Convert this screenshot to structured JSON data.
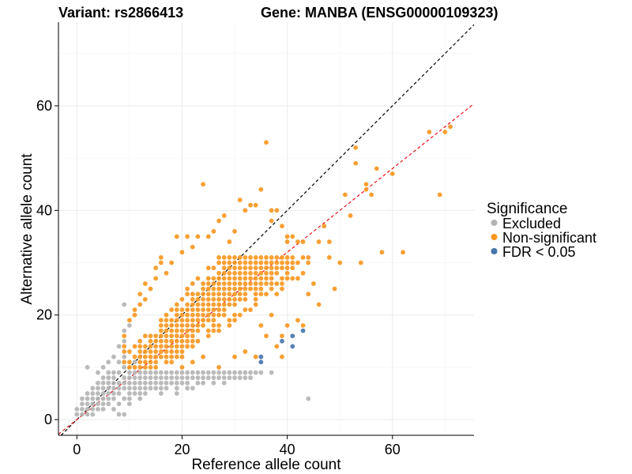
{
  "colors": {
    "excluded": "#b3b3b3",
    "non_significant": "#f7961d",
    "fdr": "#4574a8",
    "identity_line": "#000000",
    "fit_line": "#e8101a"
  },
  "chart_data": {
    "type": "scatter",
    "title_variant": "Variant: rs2866413",
    "title_gene": "Gene: MANBA (ENSG00000109323)",
    "xlabel": "Reference allele count",
    "ylabel": "Alternative allele count",
    "xlim": [
      -3.5,
      75.5
    ],
    "ylim": [
      -3,
      76
    ],
    "xticks": [
      0,
      20,
      40,
      60
    ],
    "yticks": [
      0,
      20,
      40,
      60
    ],
    "xtick_labels": [
      "0",
      "20",
      "40",
      "60"
    ],
    "ytick_labels": [
      "0",
      "20",
      "40",
      "60"
    ],
    "grid": true,
    "legend": {
      "title": "Significance",
      "position": "right",
      "entries": [
        {
          "key": "excluded",
          "label": "Excluded"
        },
        {
          "key": "non_significant",
          "label": "Non-significant"
        },
        {
          "key": "fdr",
          "label": "FDR < 0.05"
        }
      ]
    },
    "reference_lines": [
      {
        "name": "identity-line",
        "slope": 1,
        "intercept": 0,
        "style": "dashed",
        "color_key": "identity_line"
      },
      {
        "name": "fit-line",
        "slope": 0.8,
        "intercept": 0,
        "style": "dashed",
        "color_key": "fit_line"
      }
    ],
    "series": [
      {
        "name": "Excluded",
        "color_key": "excluded",
        "points": [
          [
            0,
            1
          ],
          [
            0,
            2
          ],
          [
            1,
            1
          ],
          [
            1,
            2
          ],
          [
            1,
            3
          ],
          [
            1,
            4
          ],
          [
            2,
            1
          ],
          [
            2,
            2
          ],
          [
            2,
            3
          ],
          [
            2,
            4
          ],
          [
            2,
            5
          ],
          [
            3,
            1
          ],
          [
            3,
            2
          ],
          [
            3,
            3
          ],
          [
            3,
            4
          ],
          [
            3,
            5
          ],
          [
            3,
            6
          ],
          [
            4,
            2
          ],
          [
            4,
            3
          ],
          [
            4,
            4
          ],
          [
            4,
            5
          ],
          [
            4,
            6
          ],
          [
            4,
            7
          ],
          [
            5,
            2
          ],
          [
            5,
            3
          ],
          [
            5,
            4
          ],
          [
            5,
            5
          ],
          [
            5,
            6
          ],
          [
            5,
            7
          ],
          [
            5,
            8
          ],
          [
            6,
            3
          ],
          [
            6,
            4
          ],
          [
            6,
            5
          ],
          [
            6,
            6
          ],
          [
            6,
            7
          ],
          [
            6,
            8
          ],
          [
            6,
            9
          ],
          [
            7,
            2
          ],
          [
            7,
            4
          ],
          [
            7,
            5
          ],
          [
            7,
            6
          ],
          [
            7,
            7
          ],
          [
            7,
            8
          ],
          [
            8,
            3
          ],
          [
            8,
            5
          ],
          [
            8,
            6
          ],
          [
            8,
            7
          ],
          [
            8,
            9
          ],
          [
            9,
            4
          ],
          [
            9,
            6
          ],
          [
            9,
            7
          ],
          [
            9,
            8
          ],
          [
            9,
            10
          ],
          [
            9,
            12
          ],
          [
            2,
            10
          ],
          [
            4,
            9
          ],
          [
            5,
            10
          ],
          [
            6,
            11
          ],
          [
            7,
            9
          ],
          [
            8,
            11
          ],
          [
            8,
            1
          ],
          [
            9,
            1
          ],
          [
            9,
            15
          ],
          [
            9,
            22
          ],
          [
            10,
            18
          ],
          [
            9,
            17
          ],
          [
            8,
            14
          ],
          [
            7,
            12
          ],
          [
            10,
            3
          ],
          [
            10,
            4
          ],
          [
            10,
            5
          ],
          [
            10,
            6
          ],
          [
            10,
            7
          ],
          [
            10,
            8
          ],
          [
            10,
            9
          ],
          [
            11,
            5
          ],
          [
            11,
            6
          ],
          [
            11,
            7
          ],
          [
            11,
            8
          ],
          [
            11,
            9
          ],
          [
            11,
            11
          ],
          [
            12,
            4
          ],
          [
            12,
            5
          ],
          [
            12,
            6
          ],
          [
            12,
            7
          ],
          [
            12,
            8
          ],
          [
            12,
            9
          ],
          [
            13,
            5
          ],
          [
            13,
            6
          ],
          [
            13,
            7
          ],
          [
            13,
            8
          ],
          [
            13,
            9
          ],
          [
            14,
            6
          ],
          [
            14,
            7
          ],
          [
            14,
            8
          ],
          [
            14,
            9
          ],
          [
            15,
            6
          ],
          [
            15,
            7
          ],
          [
            15,
            8
          ],
          [
            15,
            9
          ],
          [
            16,
            5
          ],
          [
            16,
            6
          ],
          [
            16,
            7
          ],
          [
            16,
            8
          ],
          [
            16,
            9
          ],
          [
            17,
            6
          ],
          [
            17,
            7
          ],
          [
            17,
            8
          ],
          [
            17,
            9
          ],
          [
            18,
            7
          ],
          [
            18,
            8
          ],
          [
            18,
            9
          ],
          [
            19,
            5
          ],
          [
            19,
            6
          ],
          [
            19,
            7
          ],
          [
            19,
            8
          ],
          [
            19,
            9
          ],
          [
            20,
            7
          ],
          [
            20,
            8
          ],
          [
            20,
            9
          ],
          [
            21,
            6
          ],
          [
            21,
            7
          ],
          [
            21,
            8
          ],
          [
            21,
            9
          ],
          [
            22,
            6
          ],
          [
            22,
            8
          ],
          [
            22,
            9
          ],
          [
            23,
            7
          ],
          [
            23,
            8
          ],
          [
            23,
            9
          ],
          [
            24,
            7
          ],
          [
            24,
            8
          ],
          [
            24,
            9
          ],
          [
            25,
            8
          ],
          [
            25,
            9
          ],
          [
            26,
            7
          ],
          [
            26,
            8
          ],
          [
            26,
            9
          ],
          [
            27,
            8
          ],
          [
            27,
            9
          ],
          [
            28,
            7
          ],
          [
            28,
            8
          ],
          [
            28,
            9
          ],
          [
            29,
            8
          ],
          [
            29,
            9
          ],
          [
            30,
            8
          ],
          [
            30,
            9
          ],
          [
            31,
            8
          ],
          [
            31,
            9
          ],
          [
            32,
            8
          ],
          [
            32,
            9
          ],
          [
            33,
            8
          ],
          [
            33,
            9
          ],
          [
            34,
            9
          ],
          [
            35,
            9
          ],
          [
            37,
            9
          ],
          [
            44,
            4
          ]
        ]
      },
      {
        "name": "Non-significant",
        "color_key": "non_significant",
        "generated": {
          "x_range": [
            10,
            48
          ],
          "y_range": [
            10,
            31
          ],
          "center_slope": 0.9,
          "center_offset": 0,
          "half_width_base": 4,
          "half_width_growth": 0.22,
          "skip_threshold": 0.35
        },
        "points": [
          [
            9,
            10
          ],
          [
            9,
            11
          ],
          [
            9,
            12
          ],
          [
            9,
            13
          ],
          [
            9,
            14
          ],
          [
            9,
            16
          ],
          [
            10,
            19
          ],
          [
            11,
            20
          ],
          [
            11,
            21
          ],
          [
            12,
            22
          ],
          [
            12,
            24
          ],
          [
            13,
            23
          ],
          [
            13,
            26
          ],
          [
            14,
            25
          ],
          [
            15,
            27
          ],
          [
            15,
            29
          ],
          [
            16,
            30
          ],
          [
            16,
            31
          ],
          [
            17,
            28
          ],
          [
            18,
            30
          ],
          [
            19,
            35
          ],
          [
            20,
            32
          ],
          [
            21,
            35
          ],
          [
            22,
            33
          ],
          [
            23,
            35
          ],
          [
            24,
            45
          ],
          [
            25,
            35
          ],
          [
            26,
            36
          ],
          [
            27,
            38
          ],
          [
            28,
            39
          ],
          [
            29,
            34
          ],
          [
            30,
            36
          ],
          [
            31,
            42
          ],
          [
            32,
            40
          ],
          [
            33,
            41
          ],
          [
            34,
            41
          ],
          [
            35,
            44
          ],
          [
            36,
            53
          ],
          [
            37,
            38
          ],
          [
            37,
            40
          ],
          [
            38,
            40
          ],
          [
            39,
            37
          ],
          [
            40,
            35
          ],
          [
            40,
            34
          ],
          [
            41,
            35
          ],
          [
            42,
            34
          ],
          [
            43,
            34
          ],
          [
            44,
            24
          ],
          [
            45,
            26
          ],
          [
            46,
            34
          ],
          [
            46,
            22
          ],
          [
            47,
            37
          ],
          [
            48,
            34
          ],
          [
            49,
            25
          ],
          [
            50,
            30
          ],
          [
            51,
            43
          ],
          [
            52,
            39
          ],
          [
            53,
            49
          ],
          [
            53,
            52
          ],
          [
            54,
            30
          ],
          [
            55,
            45
          ],
          [
            55,
            44
          ],
          [
            56,
            43
          ],
          [
            57,
            48
          ],
          [
            58,
            32
          ],
          [
            60,
            47
          ],
          [
            62,
            32
          ],
          [
            67,
            55
          ],
          [
            69,
            43
          ],
          [
            70,
            55
          ],
          [
            71,
            56
          ],
          [
            35,
            18
          ],
          [
            36,
            16
          ],
          [
            37,
            20
          ],
          [
            38,
            14
          ],
          [
            39,
            16
          ],
          [
            40,
            18
          ],
          [
            42,
            19
          ],
          [
            43,
            18
          ],
          [
            38,
            24
          ],
          [
            36,
            26
          ],
          [
            20,
            10
          ],
          [
            22,
            11
          ],
          [
            24,
            12
          ],
          [
            27,
            10
          ],
          [
            30,
            12
          ],
          [
            32,
            13
          ],
          [
            34,
            12
          ],
          [
            39,
            12
          ]
        ]
      },
      {
        "name": "FDR < 0.05",
        "color_key": "fdr",
        "points": [
          [
            35,
            12
          ],
          [
            35,
            11
          ],
          [
            38,
            14
          ],
          [
            39,
            15
          ],
          [
            41,
            14
          ],
          [
            41,
            16
          ],
          [
            43,
            17
          ]
        ]
      }
    ]
  }
}
